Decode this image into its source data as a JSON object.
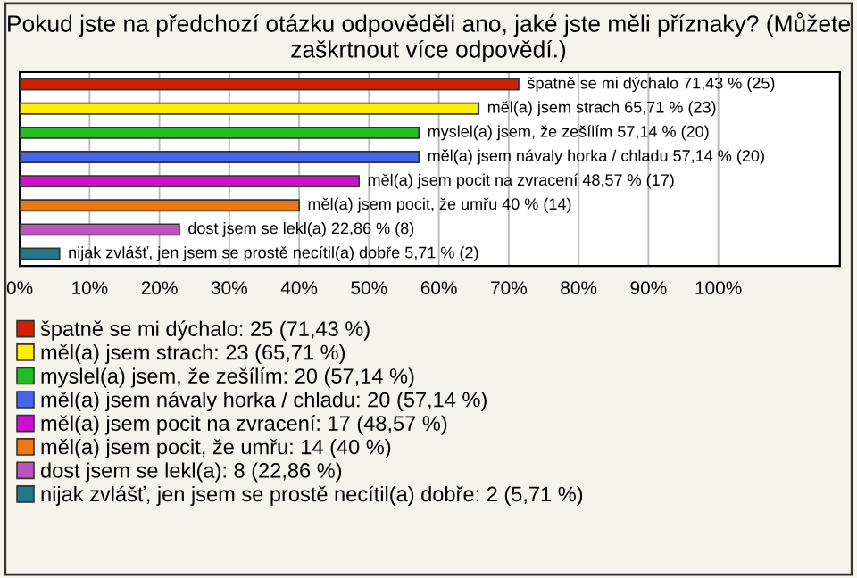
{
  "chart_data": {
    "type": "bar",
    "orientation": "horizontal",
    "stacked": true,
    "title": "Pokud jste na předchozí otázku odpověděli ano, jaké jste měli příznaky? (Můžete zaškrtnout více odpovědí.)",
    "categories": [
      null,
      null,
      null,
      null,
      null,
      null,
      null,
      null
    ],
    "series": [
      {
        "name": "špatně se mi dýchalo: 25 (71,43 %)",
        "color": "#cc2200",
        "values": [
          71.43,
          null,
          null,
          null,
          null,
          null,
          null,
          null
        ],
        "value_labels": [
          "špatně se mi dýchalo 71,43 % (25)",
          null,
          null,
          null,
          null,
          null,
          null,
          null
        ]
      },
      {
        "name": "měl(a) jsem strach: 23 (65,71 %)",
        "color": "#ffee00",
        "values": [
          null,
          65.71,
          null,
          null,
          null,
          null,
          null,
          null
        ],
        "value_labels": [
          null,
          "měl(a) jsem strach 65,71 % (23)",
          null,
          null,
          null,
          null,
          null,
          null
        ]
      },
      {
        "name": "myslel(a) jsem, že zešílím: 20 (57,14 %)",
        "color": "#22bb22",
        "values": [
          null,
          null,
          57.14,
          null,
          null,
          null,
          null,
          null
        ],
        "value_labels": [
          null,
          null,
          "myslel(a) jsem, že zešílím 57,14 % (20)",
          null,
          null,
          null,
          null,
          null
        ]
      },
      {
        "name": "měl(a) jsem návaly horka / chladu: 20 (57,14 %)",
        "color": "#4466ee",
        "values": [
          null,
          null,
          null,
          57.14,
          null,
          null,
          null,
          null
        ],
        "value_labels": [
          null,
          null,
          null,
          "měl(a) jsem návaly horka / chladu 57,14 % (20)",
          null,
          null,
          null,
          null
        ]
      },
      {
        "name": "měl(a) jsem pocit na zvracení: 17 (48,57 %)",
        "color": "#cc11cc",
        "values": [
          null,
          null,
          null,
          null,
          48.57,
          null,
          null,
          null
        ],
        "value_labels": [
          null,
          null,
          null,
          null,
          "měl(a) jsem pocit na zvracení 48,57 % (17)",
          null,
          null,
          null
        ]
      },
      {
        "name": "měl(a) jsem pocit, že umřu: 14 (40 %)",
        "color": "#ee7711",
        "values": [
          null,
          null,
          null,
          null,
          null,
          40,
          null,
          null
        ],
        "value_labels": [
          null,
          null,
          null,
          null,
          null,
          "měl(a) jsem pocit, že umřu 40 % (14)",
          null,
          null
        ]
      },
      {
        "name": "dost jsem se lekl(a): 8 (22,86 %)",
        "color": "#bb55bb",
        "values": [
          null,
          null,
          null,
          null,
          null,
          null,
          22.86,
          null
        ],
        "value_labels": [
          null,
          null,
          null,
          null,
          null,
          null,
          "dost jsem se lekl(a) 22,86 % (8)",
          null
        ]
      },
      {
        "name": "nijak zvlášť, jen jsem se prostě necítil(a) dobře: 2 (5,71 %)",
        "color": "#227788",
        "values": [
          null,
          null,
          null,
          null,
          null,
          null,
          null,
          5.71
        ],
        "value_labels": [
          null,
          null,
          null,
          null,
          null,
          null,
          null,
          "nijak zvlášť, jen jsem se prostě necítil(a) dobře 5,71 % (2)"
        ]
      }
    ],
    "xlim": [
      0,
      117.4
    ],
    "xticks": [
      {
        "value": 0,
        "label": "0%"
      },
      {
        "value": 10,
        "label": "10%"
      },
      {
        "value": 20,
        "label": "20%"
      },
      {
        "value": 30,
        "label": "30%"
      },
      {
        "value": 40,
        "label": "40%"
      },
      {
        "value": 50,
        "label": "50%"
      },
      {
        "value": 60,
        "label": "60%"
      },
      {
        "value": 70,
        "label": "70%"
      },
      {
        "value": 80,
        "label": "80%"
      },
      {
        "value": 90,
        "label": "90%"
      },
      {
        "value": 100,
        "label": "100%"
      }
    ],
    "grid": "x",
    "legend": "bottom",
    "tick_labels": "x"
  }
}
